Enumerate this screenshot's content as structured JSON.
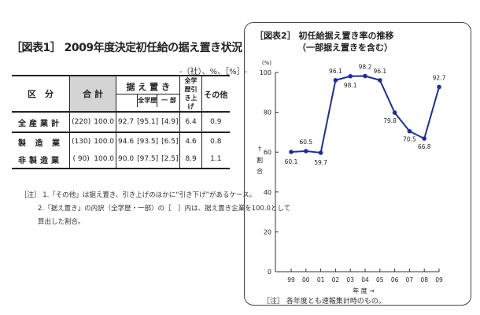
{
  "table": {
    "title": "［図表1］ 2009年度決定初任給の据え置き状況",
    "unit": "-（社）、%、［%］-",
    "header": {
      "category": "区　分",
      "total": "合 計",
      "freeze": "据 え 置 き",
      "freeze_all": "全学歴",
      "freeze_part": "一 部",
      "raise": "全学歴引き上げ",
      "other": "その他"
    },
    "rows": [
      {
        "label": "全産業計",
        "count": "(220)",
        "total": "100.0",
        "freeze": "92.7",
        "freeze_all": "[95.1]",
        "freeze_part": "[4.9]",
        "raise": "6.4",
        "other": "0.9"
      },
      {
        "label": "製 造 業",
        "count": "(130)",
        "total": "100.0",
        "freeze": "94.6",
        "freeze_all": "[93.5]",
        "freeze_part": "[6.5]",
        "raise": "4.6",
        "other": "0.8"
      },
      {
        "label": "非製造業",
        "count": "( 90)",
        "total": "100.0",
        "freeze": "90.0",
        "freeze_all": "[97.5]",
        "freeze_part": "[2.5]",
        "raise": "8.9",
        "other": "1.1"
      }
    ],
    "notes": [
      "［注］ 1.「その他」は据え置き、引き上げのほかに“引き下げ”があるケース。",
      "2.「据え置き」の内訳（全学歴・一部）の［　］内は、据え置き企業を100.0として",
      "算出した割合。"
    ]
  },
  "chart": {
    "title": "［図表2］ 初任給据え置き率の推移",
    "subtitle": "（一部据え置きを含む）",
    "note": "［注］ 各年度とも速報集計時のもの。",
    "line_color": "#1f2f8f"
  },
  "chart_data": {
    "type": "line",
    "title": "［図表2］ 初任給据え置き率の推移",
    "subtitle": "（一部据え置きを含む）",
    "xlabel": "年 度 →",
    "ylabel": "↑ 割合",
    "yunit": "(%)",
    "categories": [
      "99",
      "00",
      "01",
      "02",
      "03",
      "04",
      "05",
      "06",
      "07",
      "08",
      "09"
    ],
    "series": [
      {
        "values": [
          60.1,
          60.5,
          59.7,
          96.1,
          98.1,
          98.2,
          96.1,
          79.8,
          70.5,
          66.8,
          92.7
        ]
      }
    ],
    "ylim": [
      0,
      100
    ],
    "yticks": [
      0,
      20,
      40,
      60,
      80,
      100
    ],
    "grid": false,
    "legend": "none"
  }
}
